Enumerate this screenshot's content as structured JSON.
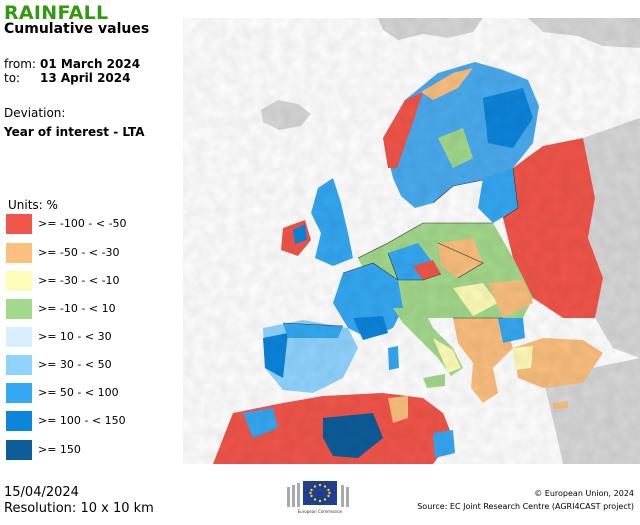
{
  "header": {
    "title": "RAINFALL",
    "subtitle": "Cumulative values",
    "from_label": "from:",
    "from_value": "01 March 2024",
    "to_label": "to:",
    "to_value": "13 April 2024",
    "deviation_label": "Deviation:",
    "deviation_value": "Year of interest - LTA"
  },
  "legend": {
    "units": "Units: %",
    "items": [
      {
        "label": ">= -100 - < -50",
        "color": "#f2554a"
      },
      {
        "label": ">= -50 - < -30",
        "color": "#fbbf7e"
      },
      {
        "label": ">= -30 - < -10",
        "color": "#fdfcb8"
      },
      {
        "label": ">= -10 - < 10",
        "color": "#a3d98b"
      },
      {
        "label": ">= 10 - < 30",
        "color": "#d9efff"
      },
      {
        "label": ">= 30 - < 50",
        "color": "#8fd4ff"
      },
      {
        "label": ">= 50 - < 100",
        "color": "#34a8f2"
      },
      {
        "label": ">= 100 - < 150",
        "color": "#0c85dc"
      },
      {
        "label": ">= 150",
        "color": "#0d5d9a"
      }
    ]
  },
  "footer": {
    "date": "15/04/2024",
    "resolution": "Resolution: 10 x 10 km",
    "logo_text": "European Commission",
    "copyright": "© European Union, 2024",
    "source": "Source: EC Joint Research Centre (AGRI4CAST project)"
  },
  "colors": {
    "title": "#2f9a0c",
    "sea": "#ffffff",
    "non_eu_land": "#d7d7d7",
    "border": "#333333"
  }
}
